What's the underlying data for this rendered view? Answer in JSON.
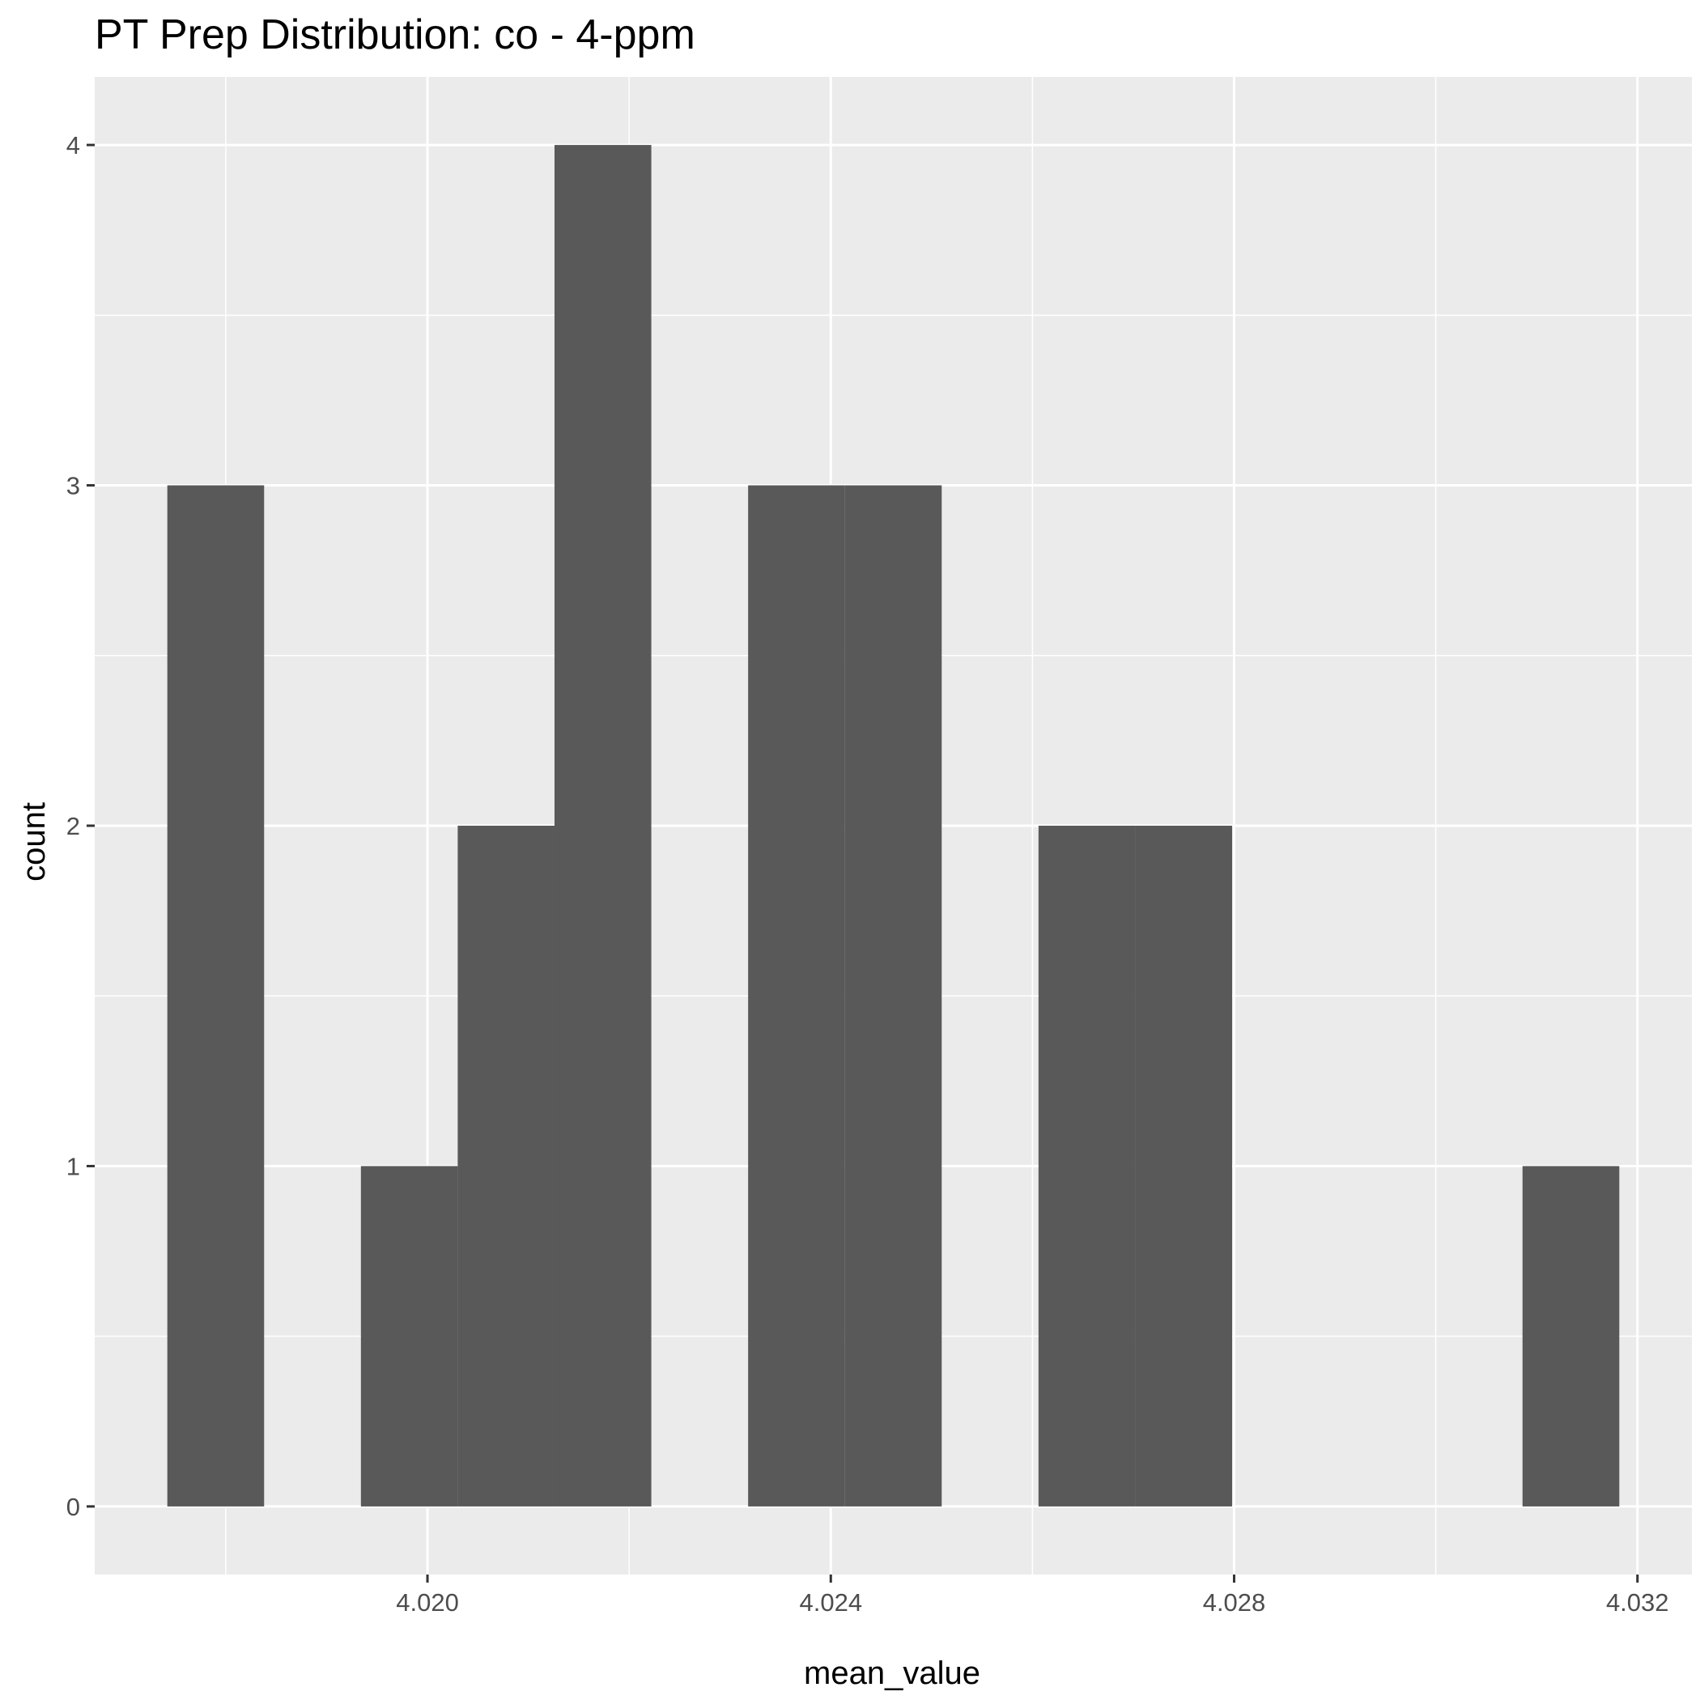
{
  "chart_data": {
    "type": "histogram",
    "title": "PT Prep Distribution: co - 4-ppm",
    "xlabel": "mean_value",
    "ylabel": "count",
    "bin_width": 0.00096,
    "bins": [
      {
        "x0": 4.01742,
        "x1": 4.01838,
        "count": 3
      },
      {
        "x0": 4.01934,
        "x1": 4.0203,
        "count": 1
      },
      {
        "x0": 4.0203,
        "x1": 4.02126,
        "count": 2
      },
      {
        "x0": 4.02126,
        "x1": 4.02222,
        "count": 4
      },
      {
        "x0": 4.02318,
        "x1": 4.02414,
        "count": 3
      },
      {
        "x0": 4.02414,
        "x1": 4.0251,
        "count": 3
      },
      {
        "x0": 4.02606,
        "x1": 4.02702,
        "count": 2
      },
      {
        "x0": 4.02702,
        "x1": 4.02798,
        "count": 2
      },
      {
        "x0": 4.03086,
        "x1": 4.03182,
        "count": 1
      }
    ],
    "x_ticks": [
      {
        "value": 4.02,
        "label": "4.020"
      },
      {
        "value": 4.024,
        "label": "4.024"
      },
      {
        "value": 4.028,
        "label": "4.028"
      },
      {
        "value": 4.032,
        "label": "4.032"
      }
    ],
    "y_ticks": [
      {
        "value": 0,
        "label": "0"
      },
      {
        "value": 1,
        "label": "1"
      },
      {
        "value": 2,
        "label": "2"
      },
      {
        "value": 3,
        "label": "3"
      },
      {
        "value": 4,
        "label": "4"
      }
    ],
    "xlim": [
      4.0167,
      4.03254
    ],
    "ylim": [
      -0.2,
      4.2
    ],
    "grid": true,
    "legend": "none",
    "colors": {
      "panel": "#EBEBEB",
      "grid": "#FFFFFF",
      "bar": "#595959",
      "tick_text": "#4D4D4D",
      "tick_mark": "#333333"
    }
  }
}
